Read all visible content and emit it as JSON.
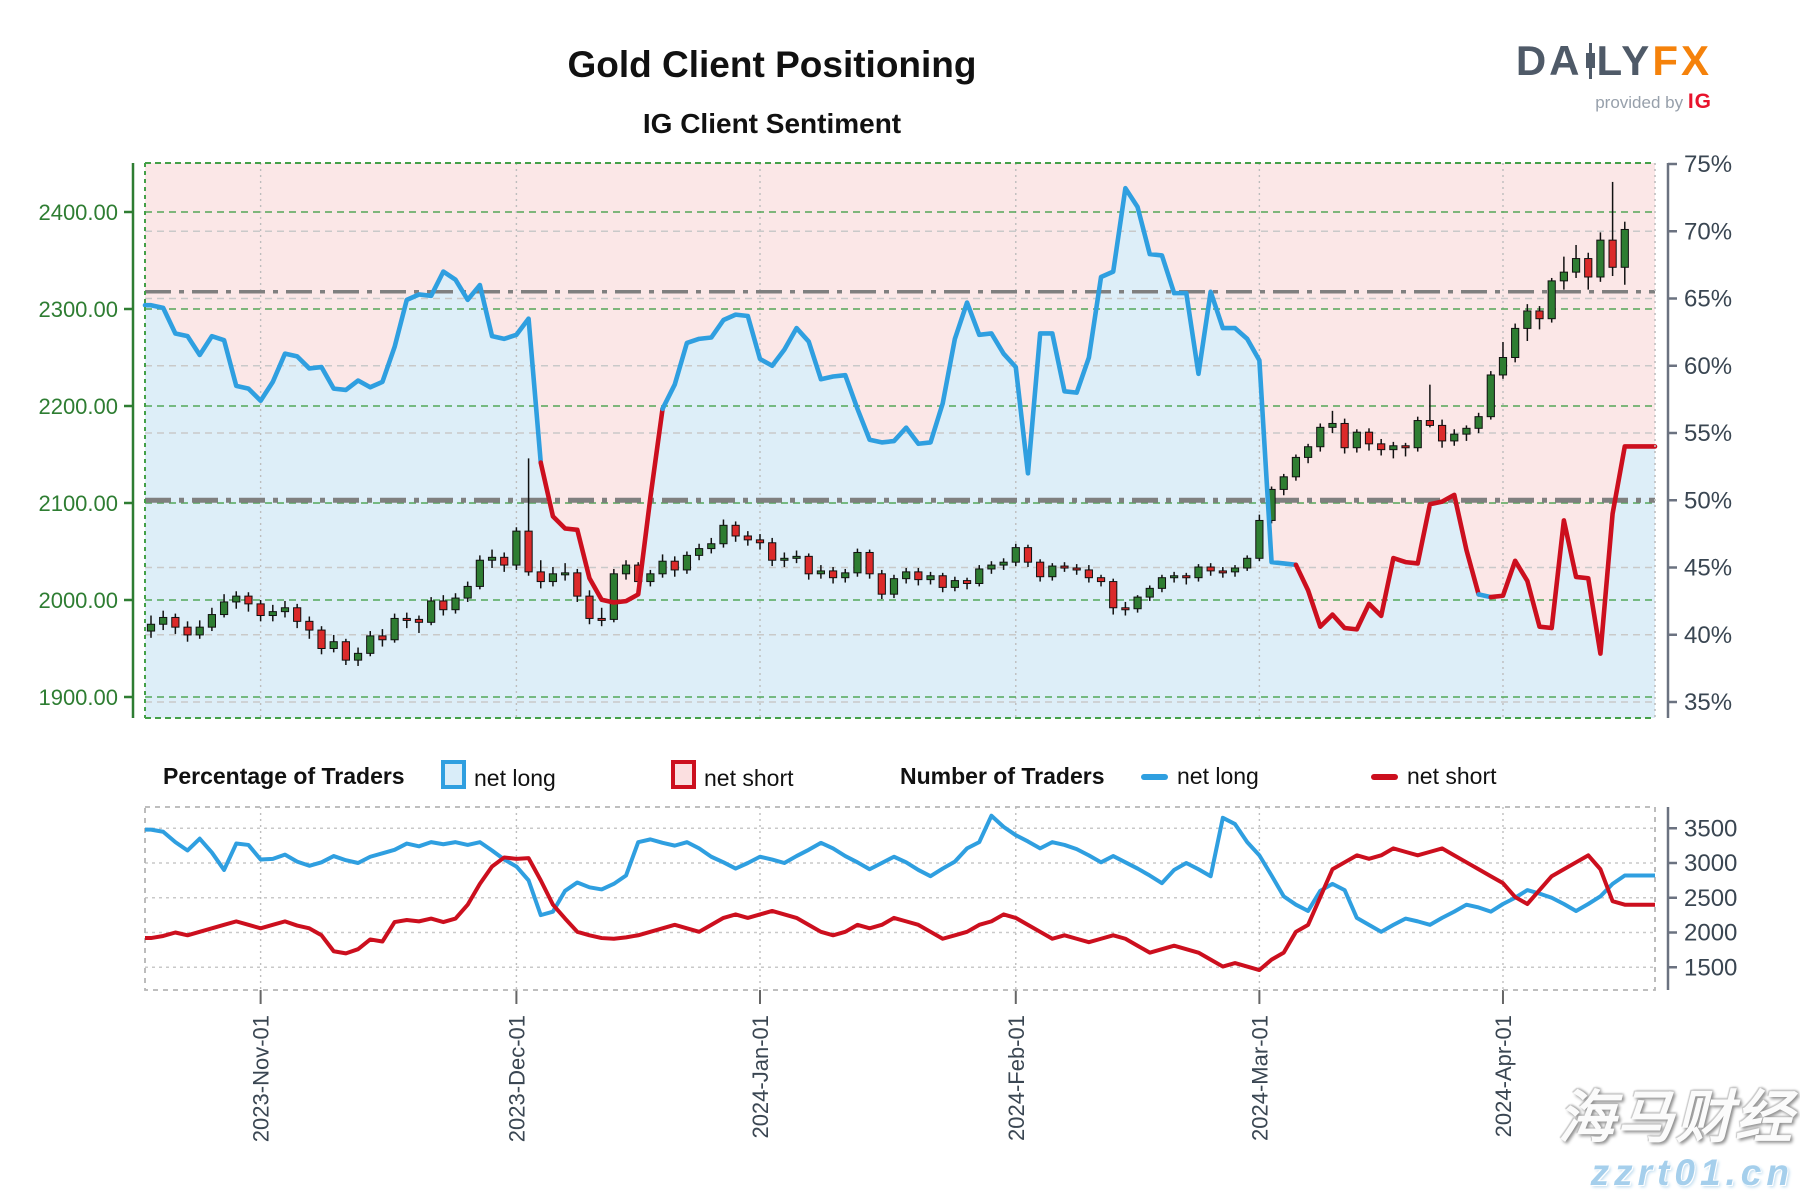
{
  "header": {
    "title": "Gold Client Positioning",
    "subtitle": "IG Client Sentiment"
  },
  "logo": {
    "da": "DA",
    "ly": "LY",
    "fx": "FX",
    "provided_by": "provided by",
    "ig": "IG"
  },
  "legend": {
    "pct_group": "Percentage of Traders",
    "pct_net_long": "net long",
    "pct_net_short": "net short",
    "num_group": "Number of Traders",
    "num_net_long": "net long",
    "num_net_short": "net short"
  },
  "watermark": {
    "line1": "海马财经",
    "line2": "zzrt01.cn"
  },
  "colors": {
    "net_long_blue": "#2f9fe0",
    "net_short_red": "#cc0f1e",
    "bg_above_pink": "#fbe7e7",
    "bg_below_blue": "#ddeef8",
    "candle_up": "#2e7d32",
    "candle_down": "#db2a2a",
    "price_grid_green": "#44a048",
    "pct_grid_gray": "#c9c9c9",
    "dashdot_gray": "#7f7f7f",
    "axis_green": "#2e7d32",
    "axis_slate": "#3a4652",
    "month_grid": "#bdbdbd"
  },
  "chart_data": {
    "type": "candlestick+line",
    "title": "Gold Client Positioning",
    "subtitle": "IG Client Sentiment",
    "x": {
      "tick_labels": [
        "2023-Nov-01",
        "2023-Dec-01",
        "2024-Jan-01",
        "2024-Feb-01",
        "2024-Mar-01",
        "2024-Apr-01"
      ],
      "tick_indices": [
        9,
        30,
        50,
        71,
        91,
        111
      ]
    },
    "upper_panel": {
      "price_axis": {
        "side": "left",
        "tick_labels": [
          "2400.00",
          "2300.00",
          "2200.00",
          "2100.00",
          "2000.00",
          "1900.00"
        ],
        "tick_values": [
          2400,
          2300,
          2200,
          2100,
          2000,
          1900
        ]
      },
      "percent_axis": {
        "side": "right",
        "tick_labels": [
          "75%",
          "70%",
          "65%",
          "60%",
          "55%",
          "50%",
          "45%",
          "40%",
          "35%"
        ],
        "tick_values": [
          75,
          70,
          65,
          60,
          55,
          50,
          45,
          40,
          35
        ]
      },
      "reference_lines_pct": [
        65.5,
        50
      ],
      "candles_ohlc": [
        [
          1968,
          1984,
          1961,
          1975
        ],
        [
          1975,
          1989,
          1969,
          1982
        ],
        [
          1982,
          1986,
          1965,
          1972
        ],
        [
          1972,
          1978,
          1957,
          1964
        ],
        [
          1964,
          1979,
          1960,
          1972
        ],
        [
          1972,
          1992,
          1968,
          1985
        ],
        [
          1985,
          2006,
          1982,
          1998
        ],
        [
          1998,
          2009,
          1991,
          2004
        ],
        [
          2004,
          2008,
          1988,
          1996
        ],
        [
          1996,
          2000,
          1978,
          1984
        ],
        [
          1984,
          1995,
          1978,
          1988
        ],
        [
          1988,
          1999,
          1982,
          1992
        ],
        [
          1992,
          1996,
          1971,
          1978
        ],
        [
          1978,
          1983,
          1960,
          1969
        ],
        [
          1969,
          1973,
          1944,
          1950
        ],
        [
          1950,
          1964,
          1946,
          1957
        ],
        [
          1957,
          1960,
          1933,
          1938
        ],
        [
          1938,
          1951,
          1932,
          1945
        ],
        [
          1945,
          1968,
          1942,
          1963
        ],
        [
          1963,
          1970,
          1952,
          1959
        ],
        [
          1959,
          1986,
          1956,
          1981
        ],
        [
          1981,
          1987,
          1971,
          1980
        ],
        [
          1980,
          1984,
          1966,
          1977
        ],
        [
          1977,
          2003,
          1974,
          1999
        ],
        [
          1999,
          2005,
          1984,
          1990
        ],
        [
          1990,
          2007,
          1986,
          2002
        ],
        [
          2002,
          2019,
          1998,
          2014
        ],
        [
          2014,
          2046,
          2011,
          2041
        ],
        [
          2041,
          2052,
          2033,
          2044
        ],
        [
          2044,
          2049,
          2029,
          2036
        ],
        [
          2036,
          2075,
          2031,
          2071
        ],
        [
          2071,
          2146,
          2025,
          2029
        ],
        [
          2029,
          2041,
          2012,
          2019
        ],
        [
          2019,
          2034,
          2014,
          2027
        ],
        [
          2027,
          2038,
          2020,
          2028
        ],
        [
          2028,
          2032,
          1998,
          2004
        ],
        [
          2004,
          2010,
          1975,
          1981
        ],
        [
          1981,
          1992,
          1973,
          1980
        ],
        [
          1980,
          2032,
          1977,
          2027
        ],
        [
          2027,
          2041,
          2021,
          2036
        ],
        [
          2036,
          2039,
          2013,
          2019
        ],
        [
          2019,
          2031,
          2014,
          2027
        ],
        [
          2027,
          2047,
          2023,
          2040
        ],
        [
          2040,
          2045,
          2024,
          2031
        ],
        [
          2031,
          2050,
          2027,
          2046
        ],
        [
          2046,
          2058,
          2041,
          2053
        ],
        [
          2053,
          2064,
          2048,
          2058
        ],
        [
          2058,
          2083,
          2054,
          2077
        ],
        [
          2077,
          2081,
          2060,
          2066
        ],
        [
          2066,
          2071,
          2056,
          2062
        ],
        [
          2062,
          2068,
          2052,
          2059
        ],
        [
          2059,
          2064,
          2035,
          2041
        ],
        [
          2041,
          2049,
          2034,
          2043
        ],
        [
          2043,
          2051,
          2038,
          2045
        ],
        [
          2045,
          2048,
          2021,
          2027
        ],
        [
          2027,
          2036,
          2022,
          2030
        ],
        [
          2030,
          2034,
          2017,
          2023
        ],
        [
          2023,
          2032,
          2018,
          2028
        ],
        [
          2028,
          2053,
          2024,
          2049
        ],
        [
          2049,
          2052,
          2022,
          2027
        ],
        [
          2027,
          2031,
          2001,
          2006
        ],
        [
          2006,
          2026,
          2002,
          2022
        ],
        [
          2022,
          2033,
          2017,
          2029
        ],
        [
          2029,
          2033,
          2015,
          2021
        ],
        [
          2021,
          2029,
          2016,
          2025
        ],
        [
          2025,
          2028,
          2008,
          2013
        ],
        [
          2013,
          2024,
          2009,
          2020
        ],
        [
          2020,
          2023,
          2011,
          2017
        ],
        [
          2017,
          2036,
          2014,
          2032
        ],
        [
          2032,
          2040,
          2027,
          2036
        ],
        [
          2036,
          2043,
          2031,
          2039
        ],
        [
          2039,
          2058,
          2035,
          2054
        ],
        [
          2054,
          2057,
          2034,
          2039
        ],
        [
          2039,
          2042,
          2019,
          2024
        ],
        [
          2024,
          2038,
          2020,
          2035
        ],
        [
          2035,
          2039,
          2029,
          2033
        ],
        [
          2033,
          2037,
          2026,
          2031
        ],
        [
          2031,
          2036,
          2018,
          2023
        ],
        [
          2023,
          2026,
          2014,
          2019
        ],
        [
          2019,
          2022,
          1985,
          1992
        ],
        [
          1992,
          1998,
          1984,
          1991
        ],
        [
          1991,
          2005,
          1987,
          2003
        ],
        [
          2003,
          2015,
          1999,
          2012
        ],
        [
          2012,
          2026,
          2008,
          2023
        ],
        [
          2023,
          2029,
          2018,
          2025
        ],
        [
          2025,
          2028,
          2016,
          2023
        ],
        [
          2023,
          2037,
          2019,
          2034
        ],
        [
          2034,
          2038,
          2025,
          2030
        ],
        [
          2030,
          2034,
          2023,
          2029
        ],
        [
          2029,
          2036,
          2024,
          2033
        ],
        [
          2033,
          2046,
          2030,
          2043
        ],
        [
          2043,
          2088,
          2040,
          2082
        ],
        [
          2082,
          2117,
          2079,
          2114
        ],
        [
          2114,
          2130,
          2108,
          2127
        ],
        [
          2127,
          2150,
          2123,
          2147
        ],
        [
          2147,
          2161,
          2141,
          2158
        ],
        [
          2158,
          2182,
          2153,
          2178
        ],
        [
          2178,
          2195,
          2172,
          2182
        ],
        [
          2182,
          2187,
          2151,
          2157
        ],
        [
          2157,
          2176,
          2152,
          2173
        ],
        [
          2173,
          2177,
          2154,
          2161
        ],
        [
          2161,
          2166,
          2149,
          2155
        ],
        [
          2155,
          2163,
          2146,
          2159
        ],
        [
          2159,
          2162,
          2148,
          2157
        ],
        [
          2157,
          2189,
          2153,
          2185
        ],
        [
          2185,
          2222,
          2178,
          2180
        ],
        [
          2180,
          2186,
          2157,
          2164
        ],
        [
          2164,
          2176,
          2159,
          2171
        ],
        [
          2171,
          2180,
          2164,
          2177
        ],
        [
          2177,
          2193,
          2172,
          2189
        ],
        [
          2189,
          2236,
          2186,
          2232
        ],
        [
          2232,
          2266,
          2228,
          2250
        ],
        [
          2250,
          2285,
          2245,
          2280
        ],
        [
          2280,
          2305,
          2267,
          2298
        ],
        [
          2298,
          2303,
          2279,
          2290
        ],
        [
          2290,
          2332,
          2286,
          2329
        ],
        [
          2329,
          2354,
          2320,
          2338
        ],
        [
          2338,
          2366,
          2332,
          2352
        ],
        [
          2352,
          2358,
          2320,
          2333
        ],
        [
          2333,
          2379,
          2328,
          2371
        ],
        [
          2371,
          2431,
          2334,
          2343
        ],
        [
          2343,
          2390,
          2325,
          2382
        ]
      ],
      "sentiment_pct": [
        64.5,
        64.3,
        62.4,
        62.2,
        60.8,
        62.2,
        61.9,
        58.5,
        58.3,
        57.4,
        58.8,
        60.9,
        60.7,
        59.8,
        59.9,
        58.3,
        58.2,
        58.9,
        58.4,
        58.8,
        61.4,
        64.9,
        65.3,
        65.2,
        67.0,
        66.4,
        64.9,
        66.0,
        62.2,
        62.0,
        62.3,
        63.5,
        52.8,
        48.8,
        47.9,
        47.8,
        44.2,
        42.6,
        42.4,
        42.5,
        43.0,
        50.2,
        56.8,
        58.6,
        61.7,
        62.0,
        62.1,
        63.4,
        63.8,
        63.7,
        60.5,
        60.0,
        61.2,
        62.8,
        61.8,
        59.0,
        59.2,
        59.3,
        56.8,
        54.5,
        54.3,
        54.4,
        55.4,
        54.2,
        54.3,
        57.2,
        62.0,
        64.7,
        62.3,
        62.4,
        60.9,
        59.9,
        52.0,
        62.4,
        62.4,
        58.1,
        58.0,
        60.6,
        66.6,
        67.0,
        73.2,
        71.8,
        68.3,
        68.2,
        65.4,
        65.4,
        59.4,
        65.5,
        62.8,
        62.8,
        62.0,
        60.4,
        45.4,
        45.3,
        45.2,
        43.3,
        40.6,
        41.5,
        40.5,
        40.4,
        42.3,
        41.4,
        45.7,
        45.4,
        45.3,
        49.7,
        49.9,
        50.4,
        46.3,
        43.0,
        42.8,
        42.9,
        45.5,
        44.0,
        40.6,
        40.5,
        48.5,
        44.3,
        44.2,
        38.6,
        49.0,
        54.0
      ],
      "sentiment_side": "BBBBBBBBBBBBBBBBBBBBBBBBBBBBBBBBRRRRRRRRRRBBBBBBBBBBBBBBBBBBBBBBBBBBBBBBBBBBBBBBBBBBBBBBBBBBBBRRRRRRRRRRRRRRRBRRRRRRRRRRRRRB"
    },
    "lower_panel": {
      "count_axis": {
        "side": "right",
        "tick_labels": [
          "3500",
          "3000",
          "2500",
          "2000",
          "1500"
        ],
        "tick_values": [
          3500,
          3000,
          2500,
          2000,
          1500
        ]
      },
      "net_long_count": [
        3480,
        3450,
        3300,
        3180,
        3350,
        3150,
        2900,
        3280,
        3260,
        3050,
        3060,
        3120,
        3020,
        2960,
        3010,
        3100,
        3040,
        3000,
        3090,
        3140,
        3190,
        3280,
        3240,
        3300,
        3270,
        3300,
        3260,
        3300,
        3180,
        3050,
        2950,
        2750,
        2250,
        2300,
        2600,
        2720,
        2650,
        2620,
        2700,
        2820,
        3300,
        3340,
        3290,
        3250,
        3300,
        3210,
        3090,
        3010,
        2920,
        3000,
        3090,
        3050,
        3000,
        3100,
        3190,
        3290,
        3210,
        3100,
        3010,
        2910,
        3000,
        3090,
        3010,
        2900,
        2810,
        2920,
        3020,
        3210,
        3300,
        3680,
        3520,
        3400,
        3310,
        3210,
        3300,
        3260,
        3200,
        3110,
        3010,
        3100,
        3010,
        2920,
        2820,
        2710,
        2900,
        3000,
        2910,
        2810,
        3650,
        3560,
        3300,
        3110,
        2820,
        2520,
        2400,
        2310,
        2600,
        2700,
        2610,
        2210,
        2110,
        2010,
        2110,
        2200,
        2160,
        2110,
        2210,
        2300,
        2400,
        2360,
        2300,
        2410,
        2500,
        2610,
        2560,
        2500,
        2410,
        2310,
        2410,
        2520,
        2700,
        2820
      ],
      "net_short_count": [
        1920,
        1950,
        2000,
        1960,
        2010,
        2060,
        2110,
        2160,
        2110,
        2060,
        2110,
        2160,
        2100,
        2060,
        1960,
        1730,
        1700,
        1760,
        1900,
        1870,
        2150,
        2180,
        2160,
        2200,
        2150,
        2200,
        2400,
        2700,
        2950,
        3080,
        3060,
        3070,
        2750,
        2400,
        2200,
        2010,
        1960,
        1920,
        1910,
        1930,
        1960,
        2010,
        2060,
        2110,
        2060,
        2010,
        2110,
        2210,
        2260,
        2210,
        2260,
        2310,
        2260,
        2210,
        2110,
        2010,
        1960,
        2010,
        2110,
        2060,
        2110,
        2210,
        2160,
        2110,
        2010,
        1910,
        1960,
        2010,
        2110,
        2160,
        2260,
        2210,
        2110,
        2010,
        1910,
        1960,
        1910,
        1860,
        1910,
        1960,
        1910,
        1810,
        1710,
        1760,
        1810,
        1760,
        1710,
        1610,
        1510,
        1560,
        1510,
        1460,
        1610,
        1710,
        2010,
        2110,
        2510,
        2910,
        3010,
        3110,
        3060,
        3110,
        3210,
        3160,
        3110,
        3160,
        3210,
        3110,
        3010,
        2910,
        2810,
        2710,
        2510,
        2410,
        2610,
        2810,
        2910,
        3010,
        3110,
        2910,
        2450,
        2400
      ]
    }
  }
}
